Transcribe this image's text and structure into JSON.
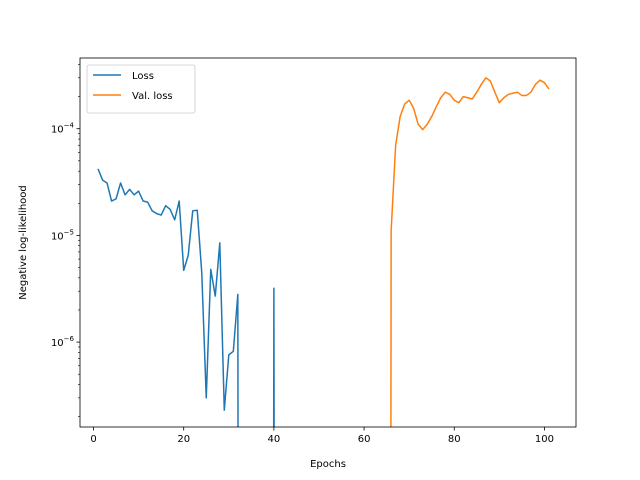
{
  "chart_data": {
    "type": "line",
    "title": "",
    "xlabel": "Epochs",
    "ylabel": "Negative log-likelihood",
    "xlim": [
      -3,
      107
    ],
    "ylim": [
      1.6e-07,
      0.00046
    ],
    "yscale": "log",
    "grid": false,
    "legend_position": "upper-left",
    "x_ticks": [
      0,
      20,
      40,
      60,
      80,
      100
    ],
    "x_tick_labels": [
      "0",
      "20",
      "40",
      "60",
      "80",
      "100"
    ],
    "y_ticks": [
      1e-06,
      1e-05,
      0.0001
    ],
    "y_tick_labels": [
      "10^{-6}",
      "10^{-5}",
      "10^{-4}"
    ],
    "series": [
      {
        "name": "Loss",
        "color": "#1f77b4",
        "segments": [
          [
            [
              1,
              4.2e-05
            ],
            [
              2,
              3.3e-05
            ],
            [
              3,
              3.1e-05
            ],
            [
              4,
              2.1e-05
            ],
            [
              5,
              2.2e-05
            ],
            [
              6,
              3.1e-05
            ],
            [
              7,
              2.4e-05
            ],
            [
              8,
              2.7e-05
            ],
            [
              9,
              2.4e-05
            ],
            [
              10,
              2.6e-05
            ],
            [
              11,
              2.1e-05
            ],
            [
              12,
              2.05e-05
            ],
            [
              13,
              1.7e-05
            ],
            [
              14,
              1.6e-05
            ],
            [
              15,
              1.55e-05
            ],
            [
              16,
              1.9e-05
            ],
            [
              17,
              1.75e-05
            ],
            [
              18,
              1.4e-05
            ],
            [
              19,
              2.1e-05
            ],
            [
              20,
              4.7e-06
            ],
            [
              21,
              6.5e-06
            ],
            [
              22,
              1.7e-05
            ],
            [
              23,
              1.72e-05
            ],
            [
              24,
              4.5e-06
            ],
            [
              25,
              3e-07
            ],
            [
              26,
              4.8e-06
            ],
            [
              27,
              2.7e-06
            ],
            [
              28,
              8.5e-06
            ],
            [
              29,
              2.3e-07
            ],
            [
              30,
              7.6e-07
            ],
            [
              31,
              8.2e-07
            ],
            [
              32,
              2.8e-06
            ],
            [
              32.05,
              1e-07
            ]
          ],
          [
            [
              39.95,
              1e-07
            ],
            [
              40,
              3.2e-06
            ],
            [
              40.05,
              1e-07
            ]
          ]
        ]
      },
      {
        "name": "Val. loss",
        "color": "#ff7f0e",
        "segments": [
          [
            [
              65.95,
              1e-07
            ],
            [
              66,
              1.1e-05
            ],
            [
              67,
              7e-05
            ],
            [
              68,
              0.00013
            ],
            [
              69,
              0.00017
            ],
            [
              70,
              0.000185
            ],
            [
              71,
              0.000155
            ],
            [
              72,
              0.00011
            ],
            [
              73,
              9.8e-05
            ],
            [
              74,
              0.00011
            ],
            [
              75,
              0.00013
            ],
            [
              76,
              0.00016
            ],
            [
              77,
              0.000195
            ],
            [
              78,
              0.00022
            ],
            [
              79,
              0.00021
            ],
            [
              80,
              0.000185
            ],
            [
              81,
              0.000175
            ],
            [
              82,
              0.0002
            ],
            [
              83,
              0.000195
            ],
            [
              84,
              0.00019
            ],
            [
              85,
              0.00022
            ],
            [
              86,
              0.00026
            ],
            [
              87,
              0.0003
            ],
            [
              88,
              0.00028
            ],
            [
              89,
              0.00022
            ],
            [
              90,
              0.000175
            ],
            [
              91,
              0.000195
            ],
            [
              92,
              0.00021
            ],
            [
              93,
              0.000215
            ],
            [
              94,
              0.00022
            ],
            [
              95,
              0.000205
            ],
            [
              96,
              0.000205
            ],
            [
              97,
              0.00022
            ],
            [
              98,
              0.00026
            ],
            [
              99,
              0.000285
            ],
            [
              100,
              0.00027
            ],
            [
              101,
              0.000235
            ]
          ]
        ]
      }
    ]
  }
}
